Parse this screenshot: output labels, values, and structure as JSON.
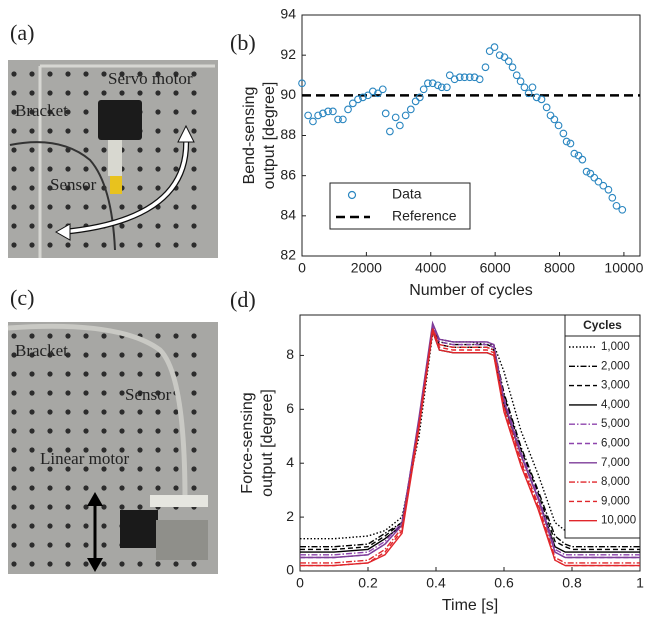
{
  "figure": {
    "panel_labels": [
      "(a)",
      "(b)",
      "(c)",
      "(d)"
    ],
    "photo_a_labels": [
      "Servo motor",
      "Bracket",
      "Sensor"
    ],
    "photo_c_labels": [
      "Bracket",
      "Sensor",
      "Linear motor"
    ]
  },
  "chart_data": [
    {
      "type": "scatter",
      "xlabel": "Number of cycles",
      "ylabel": [
        "Bend-sensing",
        "output [degree]"
      ],
      "xlim": [
        0,
        10500
      ],
      "xticks": [
        0,
        2000,
        4000,
        6000,
        8000,
        10000
      ],
      "ylim": [
        82,
        94
      ],
      "yticks": [
        82,
        84,
        86,
        88,
        90,
        92,
        94
      ],
      "legend": "lower left",
      "series": [
        {
          "name": "Data",
          "color": "#2a86c0",
          "x": [
            0,
            190,
            340,
            500,
            650,
            810,
            960,
            1120,
            1270,
            1430,
            1580,
            1740,
            1890,
            2050,
            2200,
            2360,
            2510,
            2600,
            2730,
            2910,
            3040,
            3220,
            3380,
            3530,
            3660,
            3780,
            3910,
            4060,
            4220,
            4340,
            4500,
            4590,
            4740,
            4900,
            5050,
            5210,
            5360,
            5520,
            5700,
            5830,
            5980,
            6140,
            6290,
            6420,
            6540,
            6670,
            6790,
            6910,
            7040,
            7160,
            7290,
            7440,
            7600,
            7720,
            7840,
            7970,
            8120,
            8220,
            8340,
            8460,
            8590,
            8710,
            8840,
            8960,
            9080,
            9210,
            9360,
            9520,
            9640,
            9770,
            9950
          ],
          "values": [
            90.6,
            89.0,
            88.7,
            89.0,
            89.1,
            89.2,
            89.2,
            88.8,
            88.8,
            89.3,
            89.6,
            89.8,
            89.9,
            90.0,
            90.2,
            90.1,
            90.3,
            89.1,
            88.2,
            88.9,
            88.5,
            89.0,
            89.3,
            89.7,
            89.9,
            90.3,
            90.6,
            90.6,
            90.5,
            90.4,
            90.4,
            91.0,
            90.8,
            90.9,
            90.9,
            90.9,
            90.9,
            90.8,
            91.4,
            92.2,
            92.4,
            92.0,
            91.9,
            91.7,
            91.4,
            91.0,
            90.7,
            90.4,
            90.1,
            90.4,
            89.9,
            89.8,
            89.4,
            89.0,
            88.8,
            88.5,
            88.1,
            87.7,
            87.6,
            87.1,
            87.0,
            86.8,
            86.2,
            86.1,
            85.9,
            85.7,
            85.5,
            85.3,
            84.9,
            84.5,
            84.3
          ]
        }
      ],
      "reference": {
        "name": "Reference",
        "value": 90,
        "color": "#000000"
      }
    },
    {
      "type": "line",
      "xlabel": "Time [s]",
      "ylabel": [
        "Force-sensing",
        "output [degree]"
      ],
      "xlim": [
        0,
        1
      ],
      "xticks": [
        0,
        0.2,
        0.4,
        0.6,
        0.8,
        1
      ],
      "ylim": [
        0,
        9.5
      ],
      "yticks": [
        0,
        2,
        4,
        6,
        8
      ],
      "legend": "upper right",
      "legend_title": "Cycles",
      "x": [
        0,
        0.1,
        0.2,
        0.25,
        0.3,
        0.35,
        0.39,
        0.41,
        0.45,
        0.5,
        0.55,
        0.57,
        0.6,
        0.65,
        0.7,
        0.75,
        0.78,
        0.8,
        0.9,
        1
      ],
      "series": [
        {
          "name": "1,000",
          "color": "#000000",
          "dash": "dotted",
          "values": [
            1.2,
            1.2,
            1.3,
            1.5,
            2.0,
            5.0,
            8.8,
            8.6,
            8.5,
            8.5,
            8.4,
            8.4,
            7.4,
            5.2,
            3.6,
            1.8,
            1.5,
            1.4,
            1.3,
            1.3
          ]
        },
        {
          "name": "2,000",
          "color": "#000000",
          "dash": "dashdot",
          "values": [
            0.9,
            0.9,
            1.0,
            1.4,
            1.8,
            5.4,
            9.0,
            8.5,
            8.4,
            8.4,
            8.4,
            8.3,
            6.6,
            4.6,
            3.0,
            1.3,
            1.0,
            0.9,
            0.9,
            0.9
          ]
        },
        {
          "name": "3,000",
          "color": "#000000",
          "dash": "dashed",
          "values": [
            0.8,
            0.8,
            0.9,
            1.3,
            1.8,
            5.5,
            9.0,
            8.4,
            8.3,
            8.3,
            8.3,
            8.2,
            6.5,
            4.5,
            2.9,
            1.1,
            0.9,
            0.8,
            0.8,
            0.8
          ]
        },
        {
          "name": "4,000",
          "color": "#000000",
          "dash": "solid",
          "values": [
            0.7,
            0.7,
            0.8,
            1.2,
            1.7,
            5.5,
            8.9,
            8.2,
            8.1,
            8.1,
            8.1,
            8.0,
            6.2,
            4.3,
            2.7,
            0.9,
            0.7,
            0.7,
            0.7,
            0.7
          ]
        },
        {
          "name": "5,000",
          "color": "#8e44ad",
          "dash": "dashdot",
          "values": [
            0.6,
            0.6,
            0.7,
            1.1,
            1.8,
            5.6,
            9.1,
            8.6,
            8.5,
            8.5,
            8.5,
            8.4,
            6.4,
            4.4,
            2.8,
            0.8,
            0.6,
            0.6,
            0.6,
            0.6
          ]
        },
        {
          "name": "6,000",
          "color": "#8e44ad",
          "dash": "dashed",
          "values": [
            0.5,
            0.5,
            0.6,
            1.0,
            1.7,
            5.6,
            9.1,
            8.5,
            8.4,
            8.4,
            8.4,
            8.3,
            6.3,
            4.3,
            2.7,
            0.7,
            0.5,
            0.5,
            0.5,
            0.5
          ]
        },
        {
          "name": "7,000",
          "color": "#7d3c98",
          "dash": "solid",
          "values": [
            0.5,
            0.5,
            0.6,
            1.0,
            1.7,
            5.7,
            9.2,
            8.6,
            8.5,
            8.5,
            8.5,
            8.4,
            6.3,
            4.3,
            2.7,
            0.7,
            0.5,
            0.5,
            0.5,
            0.5
          ]
        },
        {
          "name": "8,000",
          "color": "#e0262b",
          "dash": "dashdot",
          "values": [
            0.3,
            0.3,
            0.4,
            0.8,
            1.6,
            5.5,
            9.0,
            8.4,
            8.3,
            8.3,
            8.3,
            8.2,
            6.1,
            4.1,
            2.5,
            0.5,
            0.3,
            0.3,
            0.3,
            0.3
          ]
        },
        {
          "name": "9,000",
          "color": "#e0262b",
          "dash": "dashed",
          "values": [
            0.2,
            0.2,
            0.3,
            0.7,
            1.5,
            5.4,
            9.0,
            8.3,
            8.2,
            8.2,
            8.2,
            8.1,
            6.0,
            4.0,
            2.4,
            0.4,
            0.2,
            0.2,
            0.2,
            0.2
          ]
        },
        {
          "name": "10,000",
          "color": "#e0262b",
          "dash": "solid",
          "values": [
            0.2,
            0.2,
            0.3,
            0.6,
            1.4,
            5.3,
            8.9,
            8.2,
            8.1,
            8.1,
            8.1,
            8.0,
            5.9,
            3.9,
            2.3,
            0.4,
            0.2,
            0.2,
            0.2,
            0.2
          ]
        }
      ]
    }
  ]
}
